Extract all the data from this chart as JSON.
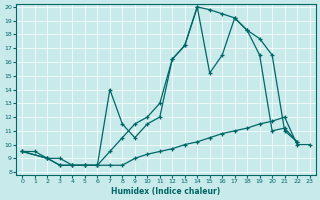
{
  "xlabel": "Humidex (Indice chaleur)",
  "bg_color": "#c8eaea",
  "line_color": "#006666",
  "grid_color": "#ffffff",
  "xlim": [
    -0.5,
    23.5
  ],
  "ylim": [
    7.8,
    20.2
  ],
  "xticks": [
    0,
    1,
    2,
    3,
    4,
    5,
    6,
    7,
    8,
    9,
    10,
    11,
    12,
    13,
    14,
    15,
    16,
    17,
    18,
    19,
    20,
    21,
    22,
    23
  ],
  "yticks": [
    8,
    9,
    10,
    11,
    12,
    13,
    14,
    15,
    16,
    17,
    18,
    19,
    20
  ],
  "line_flat_x": [
    0,
    1,
    2,
    3,
    4,
    5,
    6,
    7,
    8,
    9,
    10,
    11,
    12,
    13,
    14,
    15,
    16,
    17,
    18,
    19,
    20,
    21,
    22,
    23
  ],
  "line_flat_y": [
    9.5,
    9.5,
    9.0,
    9.0,
    8.5,
    8.5,
    8.5,
    8.5,
    8.5,
    9.0,
    9.3,
    9.5,
    9.7,
    10.0,
    10.2,
    10.5,
    10.8,
    11.0,
    11.2,
    11.5,
    11.7,
    12.0,
    10.0,
    10.0
  ],
  "line_upper_x": [
    0,
    2,
    3,
    4,
    5,
    6,
    7,
    8,
    9,
    10,
    11,
    12,
    13,
    14,
    15,
    16,
    17,
    18,
    19,
    20,
    21,
    22
  ],
  "line_upper_y": [
    9.5,
    9.0,
    8.5,
    8.5,
    8.5,
    8.5,
    9.5,
    10.5,
    11.5,
    12.0,
    13.0,
    16.2,
    17.2,
    20.0,
    19.8,
    19.5,
    19.2,
    18.3,
    17.7,
    16.5,
    11.0,
    10.2
  ],
  "line_mid_x": [
    0,
    2,
    3,
    4,
    5,
    6,
    7,
    8,
    9,
    10,
    11,
    12,
    13,
    14,
    15,
    16,
    17,
    18,
    19,
    20,
    21,
    22
  ],
  "line_mid_y": [
    9.5,
    9.0,
    8.5,
    8.5,
    8.5,
    8.5,
    14.0,
    11.5,
    10.5,
    11.5,
    12.0,
    16.2,
    17.2,
    20.0,
    15.2,
    16.5,
    19.2,
    18.3,
    16.5,
    11.0,
    11.2,
    10.2
  ]
}
